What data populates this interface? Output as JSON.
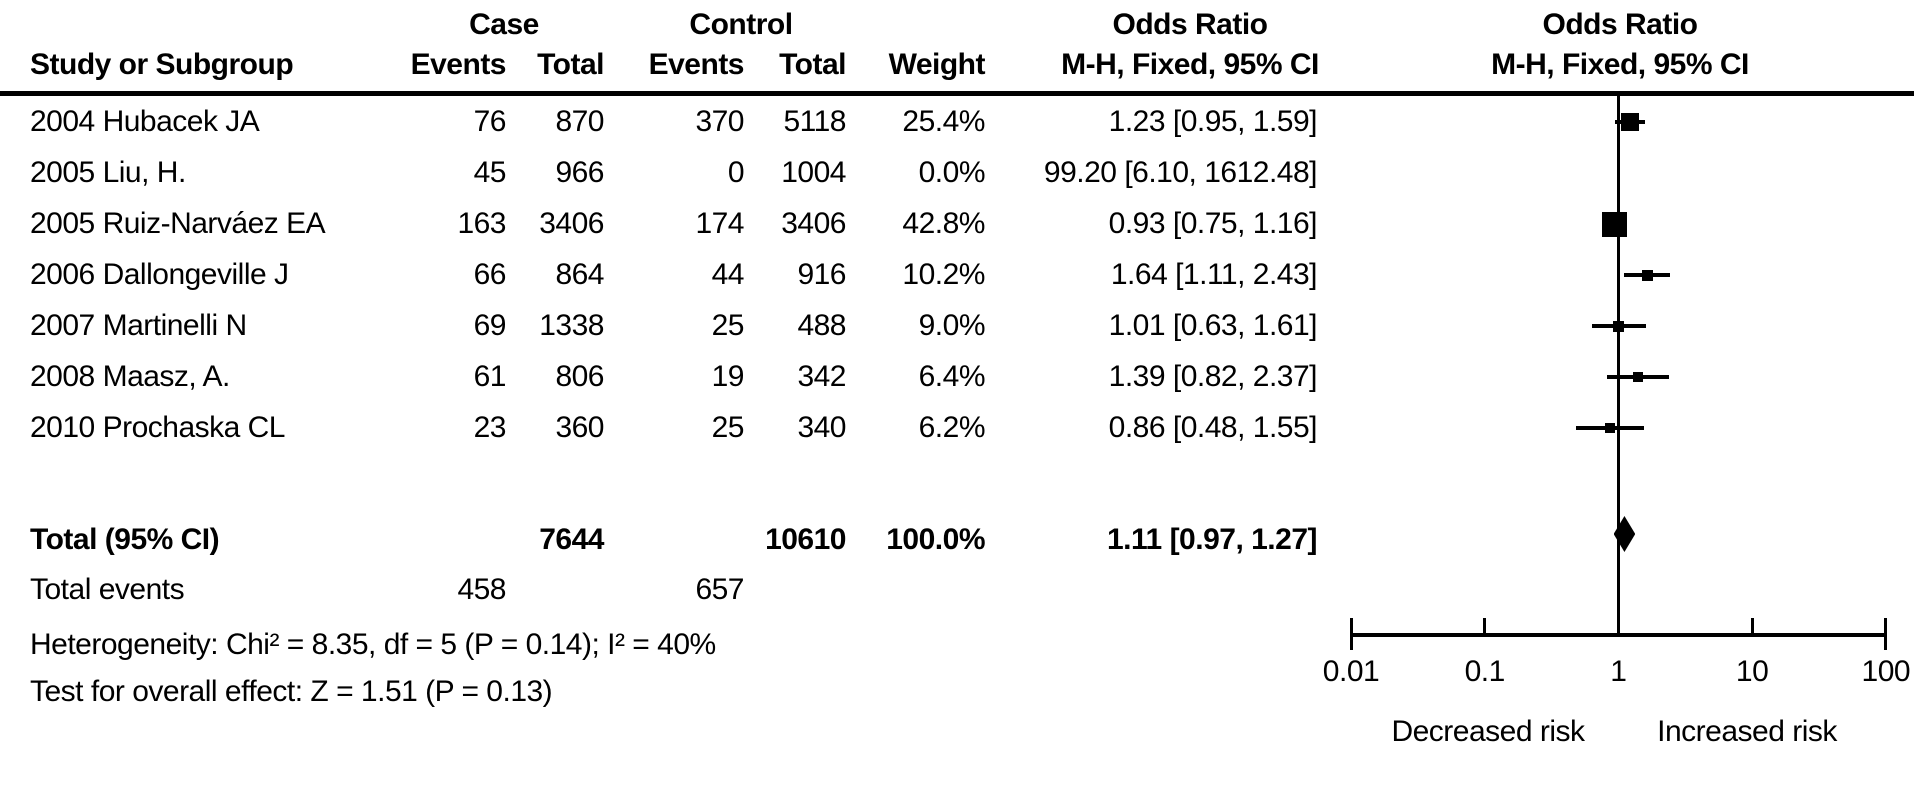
{
  "colors": {
    "ink": "#000000",
    "background": "#ffffff"
  },
  "table": {
    "group_headers": {
      "case": "Case",
      "control": "Control",
      "odds_ratio_left": "Odds Ratio",
      "odds_ratio_right": "Odds Ratio"
    },
    "col_headers": {
      "study": "Study or Subgroup",
      "case_events": "Events",
      "case_total": "Total",
      "control_events": "Events",
      "control_total": "Total",
      "weight": "Weight",
      "mh_left": "M-H, Fixed, 95% CI",
      "mh_right": "M-H, Fixed, 95% CI"
    },
    "rows": [
      {
        "study": "2004 Hubacek JA",
        "case_events": "76",
        "case_total": "870",
        "control_events": "370",
        "control_total": "5118",
        "weight": "25.4%",
        "or_ci": "1.23 [0.95, 1.59]"
      },
      {
        "study": "2005 Liu, H.",
        "case_events": "45",
        "case_total": "966",
        "control_events": "0",
        "control_total": "1004",
        "weight": "0.0%",
        "or_ci": "99.20 [6.10, 1612.48]"
      },
      {
        "study": "2005 Ruiz-Narváez EA",
        "case_events": "163",
        "case_total": "3406",
        "control_events": "174",
        "control_total": "3406",
        "weight": "42.8%",
        "or_ci": "0.93 [0.75, 1.16]"
      },
      {
        "study": "2006 Dallongeville J",
        "case_events": "66",
        "case_total": "864",
        "control_events": "44",
        "control_total": "916",
        "weight": "10.2%",
        "or_ci": "1.64 [1.11, 2.43]"
      },
      {
        "study": "2007 Martinelli N",
        "case_events": "69",
        "case_total": "1338",
        "control_events": "25",
        "control_total": "488",
        "weight": "9.0%",
        "or_ci": "1.01 [0.63, 1.61]"
      },
      {
        "study": "2008 Maasz, A.",
        "case_events": "61",
        "case_total": "806",
        "control_events": "19",
        "control_total": "342",
        "weight": "6.4%",
        "or_ci": "1.39 [0.82, 2.37]"
      },
      {
        "study": "2010 Prochaska CL",
        "case_events": "23",
        "case_total": "360",
        "control_events": "25",
        "control_total": "340",
        "weight": "6.2%",
        "or_ci": "0.86 [0.48, 1.55]"
      }
    ],
    "total": {
      "label": "Total (95% CI)",
      "case_total": "7644",
      "control_total": "10610",
      "weight": "100.0%",
      "or_ci": "1.11 [0.97, 1.27]"
    },
    "total_events": {
      "label": "Total events",
      "case": "458",
      "control": "657"
    },
    "heterogeneity": "Heterogeneity: Chi² = 8.35, df = 5 (P = 0.14); I² = 40%",
    "overall_effect": "Test for overall effect: Z = 1.51 (P = 0.13)"
  },
  "chart_data": {
    "type": "forest",
    "effect_measure": "Odds Ratio",
    "method": "M-H, Fixed, 95% CI",
    "x_scale": "log10",
    "xlim": [
      0.01,
      100
    ],
    "axis_ticks": [
      "0.01",
      "0.1",
      "1",
      "10",
      "100"
    ],
    "null_line": 1,
    "axis_labels": {
      "left": "Decreased risk",
      "right": "Increased risk"
    },
    "studies": [
      {
        "name": "2004 Hubacek JA",
        "or": 1.23,
        "ci_low": 0.95,
        "ci_high": 1.59,
        "weight_pct": 25.4,
        "marker_visible": true
      },
      {
        "name": "2005 Liu, H.",
        "or": 99.2,
        "ci_low": 6.1,
        "ci_high": 1612.48,
        "weight_pct": 0.0,
        "marker_visible": false
      },
      {
        "name": "2005 Ruiz-Narváez EA",
        "or": 0.93,
        "ci_low": 0.75,
        "ci_high": 1.16,
        "weight_pct": 42.8,
        "marker_visible": true
      },
      {
        "name": "2006 Dallongeville J",
        "or": 1.64,
        "ci_low": 1.11,
        "ci_high": 2.43,
        "weight_pct": 10.2,
        "marker_visible": true
      },
      {
        "name": "2007 Martinelli N",
        "or": 1.01,
        "ci_low": 0.63,
        "ci_high": 1.61,
        "weight_pct": 9.0,
        "marker_visible": true
      },
      {
        "name": "2008 Maasz, A.",
        "or": 1.39,
        "ci_low": 0.82,
        "ci_high": 2.37,
        "weight_pct": 6.4,
        "marker_visible": true
      },
      {
        "name": "2010 Prochaska CL",
        "or": 0.86,
        "ci_low": 0.48,
        "ci_high": 1.55,
        "weight_pct": 6.2,
        "marker_visible": true
      }
    ],
    "pooled": {
      "or": 1.11,
      "ci_low": 0.97,
      "ci_high": 1.27
    }
  }
}
